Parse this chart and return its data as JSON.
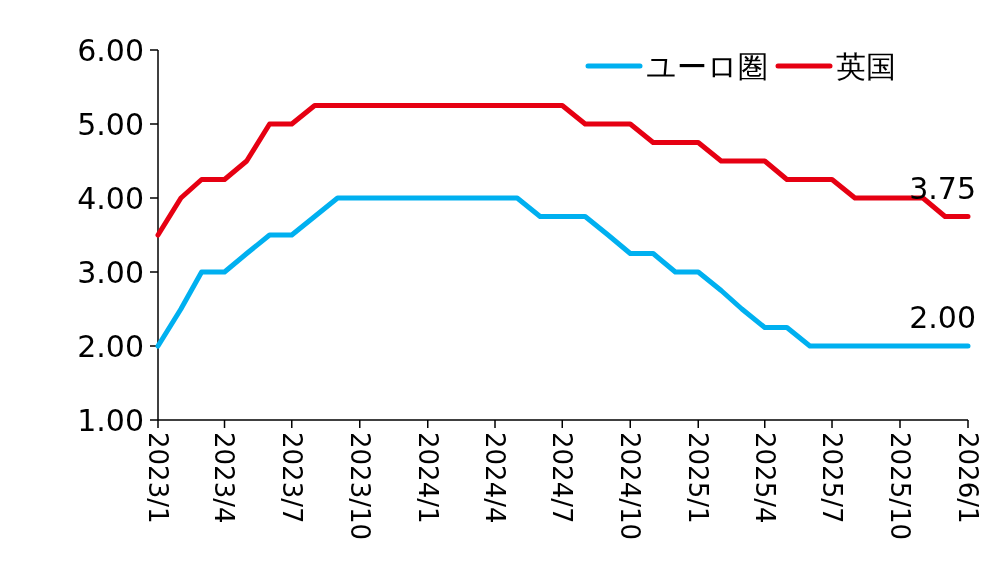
{
  "chart_data": {
    "type": "line",
    "x": [
      "2023-01",
      "2023-02",
      "2023-03",
      "2023-04",
      "2023-05",
      "2023-06",
      "2023-07",
      "2023-08",
      "2023-09",
      "2023-10",
      "2023-11",
      "2023-12",
      "2024-01",
      "2024-02",
      "2024-03",
      "2024-04",
      "2024-05",
      "2024-06",
      "2024-07",
      "2024-08",
      "2024-09",
      "2024-10",
      "2024-11",
      "2024-12",
      "2025-01",
      "2025-02",
      "2025-03",
      "2025-04",
      "2025-05",
      "2025-06",
      "2025-07",
      "2025-08",
      "2025-09",
      "2025-10",
      "2025-11",
      "2025-12",
      "2026-01"
    ],
    "series": [
      {
        "name": "ユーロ圏",
        "color": "#00b0f0",
        "values": [
          2.0,
          2.5,
          3.0,
          3.0,
          3.25,
          3.5,
          3.5,
          3.75,
          4.0,
          4.0,
          4.0,
          4.0,
          4.0,
          4.0,
          4.0,
          4.0,
          4.0,
          3.75,
          3.75,
          3.75,
          3.5,
          3.25,
          3.25,
          3.0,
          3.0,
          2.75,
          2.5,
          2.25,
          2.25,
          2.0,
          2.0,
          2.0,
          2.0,
          2.0,
          2.0,
          2.0,
          2.0
        ]
      },
      {
        "name": "英国",
        "color": "#e60012",
        "values": [
          3.5,
          4.0,
          4.25,
          4.25,
          4.5,
          5.0,
          5.0,
          5.25,
          5.25,
          5.25,
          5.25,
          5.25,
          5.25,
          5.25,
          5.25,
          5.25,
          5.25,
          5.25,
          5.25,
          5.0,
          5.0,
          5.0,
          4.75,
          4.75,
          4.75,
          4.5,
          4.5,
          4.5,
          4.25,
          4.25,
          4.25,
          4.0,
          4.0,
          4.0,
          4.0,
          3.75,
          3.75
        ]
      }
    ],
    "xlim": [
      "2023-01",
      "2026-01"
    ],
    "xticks": [
      {
        "value": "2023-01",
        "label": "2023/1"
      },
      {
        "value": "2023-04",
        "label": "2023/4"
      },
      {
        "value": "2023-07",
        "label": "2023/7"
      },
      {
        "value": "2023-10",
        "label": "2023/10"
      },
      {
        "value": "2024-01",
        "label": "2024/1"
      },
      {
        "value": "2024-04",
        "label": "2024/4"
      },
      {
        "value": "2024-07",
        "label": "2024/7"
      },
      {
        "value": "2024-10",
        "label": "2024/10"
      },
      {
        "value": "2025-01",
        "label": "2025/1"
      },
      {
        "value": "2025-04",
        "label": "2025/4"
      },
      {
        "value": "2025-07",
        "label": "2025/7"
      },
      {
        "value": "2025-10",
        "label": "2025/10"
      },
      {
        "value": "2026-01",
        "label": "2026/1"
      }
    ],
    "ylim": [
      1,
      6
    ],
    "yticks": [
      {
        "value": 1,
        "label": "1.00"
      },
      {
        "value": 2,
        "label": "2.00"
      },
      {
        "value": 3,
        "label": "3.00"
      },
      {
        "value": 4,
        "label": "4.00"
      },
      {
        "value": 5,
        "label": "5.00"
      },
      {
        "value": 6,
        "label": "6.00"
      }
    ],
    "annotations": [
      {
        "text": "3.75",
        "x": "2026-01",
        "y": 3.75
      },
      {
        "text": "2.00",
        "x": "2026-01",
        "y": 2.0
      }
    ],
    "legend": "top right",
    "grid": false,
    "marker": "none",
    "line_style": "solid"
  }
}
